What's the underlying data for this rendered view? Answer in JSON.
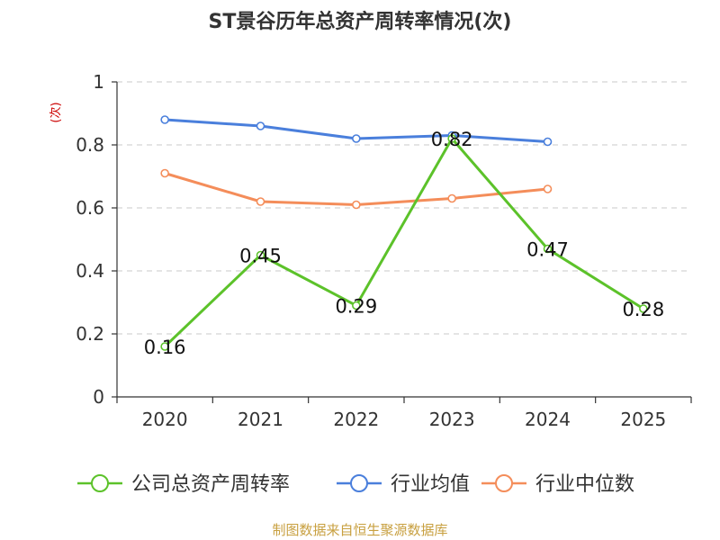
{
  "chart_data": {
    "type": "line",
    "title": "ST景谷历年总资产周转率情况(次)",
    "ylabel": "(次)",
    "xlabel": "",
    "categories": [
      "2020",
      "2021",
      "2022",
      "2023",
      "2024",
      "2025"
    ],
    "ylim": [
      0,
      1
    ],
    "yticks": [
      0,
      0.2,
      0.4,
      0.6,
      0.8,
      1
    ],
    "ytick_labels": [
      "0",
      "0.2",
      "0.4",
      "0.6",
      "0.8",
      "1"
    ],
    "grid": "horizontal dashed",
    "legend_position": "bottom",
    "series": [
      {
        "name": "公司总资产周转率",
        "color": "#5cc22a",
        "values": [
          0.16,
          0.45,
          0.29,
          0.82,
          0.47,
          0.28
        ],
        "labels": [
          "0.16",
          "0.45",
          "0.29",
          "0.82",
          "0.47",
          "0.28"
        ]
      },
      {
        "name": "行业均值",
        "color": "#4a7fdc",
        "values": [
          0.88,
          0.86,
          0.82,
          0.83,
          0.81,
          null
        ]
      },
      {
        "name": "行业中位数",
        "color": "#f48d5a",
        "values": [
          0.71,
          0.62,
          0.61,
          0.63,
          0.66,
          null
        ]
      }
    ],
    "source": "制图数据来自恒生聚源数据库"
  }
}
